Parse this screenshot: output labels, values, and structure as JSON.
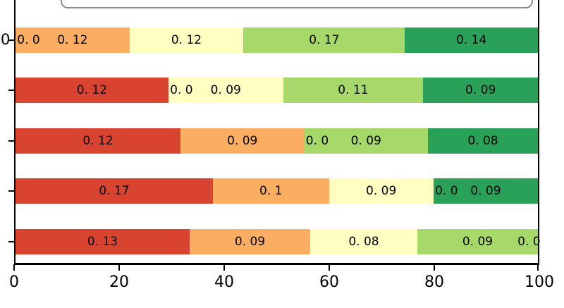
{
  "chart_data": {
    "type": "bar",
    "orientation": "horizontal",
    "stacked": true,
    "normalized_to_100": true,
    "title": "",
    "xlabel": "",
    "ylabel": "",
    "xlim": [
      0,
      100
    ],
    "x_tick_labels": [
      "0",
      "20",
      "40",
      "60",
      "80",
      "100"
    ],
    "x_tick_values": [
      0,
      20,
      40,
      60,
      80,
      100
    ],
    "y_tick_label": "0",
    "grid": false,
    "legend_position": "top (cut off)",
    "colors": [
      "#d8442f",
      "#fbad62",
      "#ffffc2",
      "#a6d969",
      "#2aa158"
    ],
    "rows": [
      {
        "labels": [
          "0. 0",
          "0. 12",
          "0. 12",
          "0. 17",
          "0. 14"
        ],
        "values": [
          0,
          0.12,
          0.12,
          0.17,
          0.14
        ]
      },
      {
        "labels": [
          "0. 12",
          "0. 0",
          "0. 09",
          "0. 11",
          "0. 09"
        ],
        "values": [
          0.12,
          0,
          0.09,
          0.11,
          0.09
        ]
      },
      {
        "labels": [
          "0. 12",
          "0. 09",
          "0. 0",
          "0. 09",
          "0. 08"
        ],
        "values": [
          0.12,
          0.09,
          0,
          0.09,
          0.08
        ]
      },
      {
        "labels": [
          "0. 17",
          "0. 1",
          "0. 09",
          "0. 0",
          "0. 09"
        ],
        "values": [
          0.17,
          0.1,
          0.09,
          0,
          0.09
        ]
      },
      {
        "labels": [
          "0. 13",
          "0. 09",
          "0. 08",
          "0. 09",
          "0. 0"
        ],
        "values": [
          0.13,
          0.09,
          0.08,
          0.09,
          0
        ]
      }
    ]
  }
}
